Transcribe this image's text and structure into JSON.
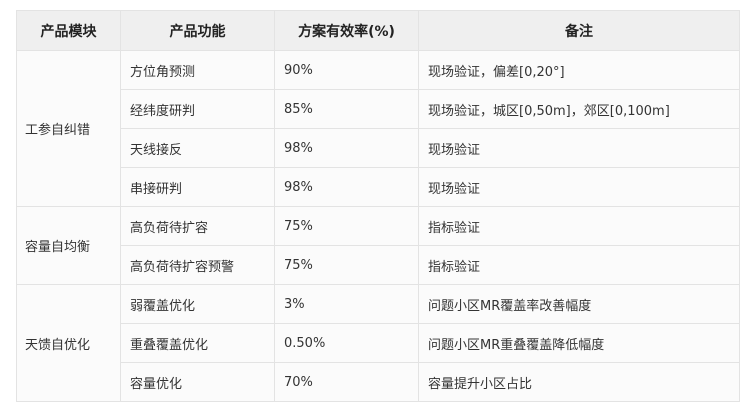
{
  "headers": [
    "产品模块",
    "产品功能",
    "方案有效率(%)",
    "备注"
  ],
  "groups": [
    {
      "module": "工参自纠错",
      "rows": [
        {
          "feature": "方位角预测",
          "rate": "90%",
          "note": "现场验证，偏差[0,20°]"
        },
        {
          "feature": "经纬度研判",
          "rate": "85%",
          "note": "现场验证，城区[0,50m]，郊区[0,100m]"
        },
        {
          "feature": "天线接反",
          "rate": "98%",
          "note": "现场验证"
        },
        {
          "feature": "串接研判",
          "rate": "98%",
          "note": "现场验证"
        }
      ]
    },
    {
      "module": "容量自均衡",
      "rows": [
        {
          "feature": "高负荷待扩容",
          "rate": "75%",
          "note": "指标验证"
        },
        {
          "feature": "高负荷待扩容预警",
          "rate": "75%",
          "note": "指标验证"
        }
      ]
    },
    {
      "module": "天馈自优化",
      "rows": [
        {
          "feature": "弱覆盖优化",
          "rate": "3%",
          "note": "问题小区MR覆盖率改善幅度"
        },
        {
          "feature": "重叠覆盖优化",
          "rate": "0.50%",
          "note": "问题小区MR重叠覆盖降低幅度"
        },
        {
          "feature": "容量优化",
          "rate": "70%",
          "note": "容量提升小区占比"
        }
      ]
    }
  ]
}
